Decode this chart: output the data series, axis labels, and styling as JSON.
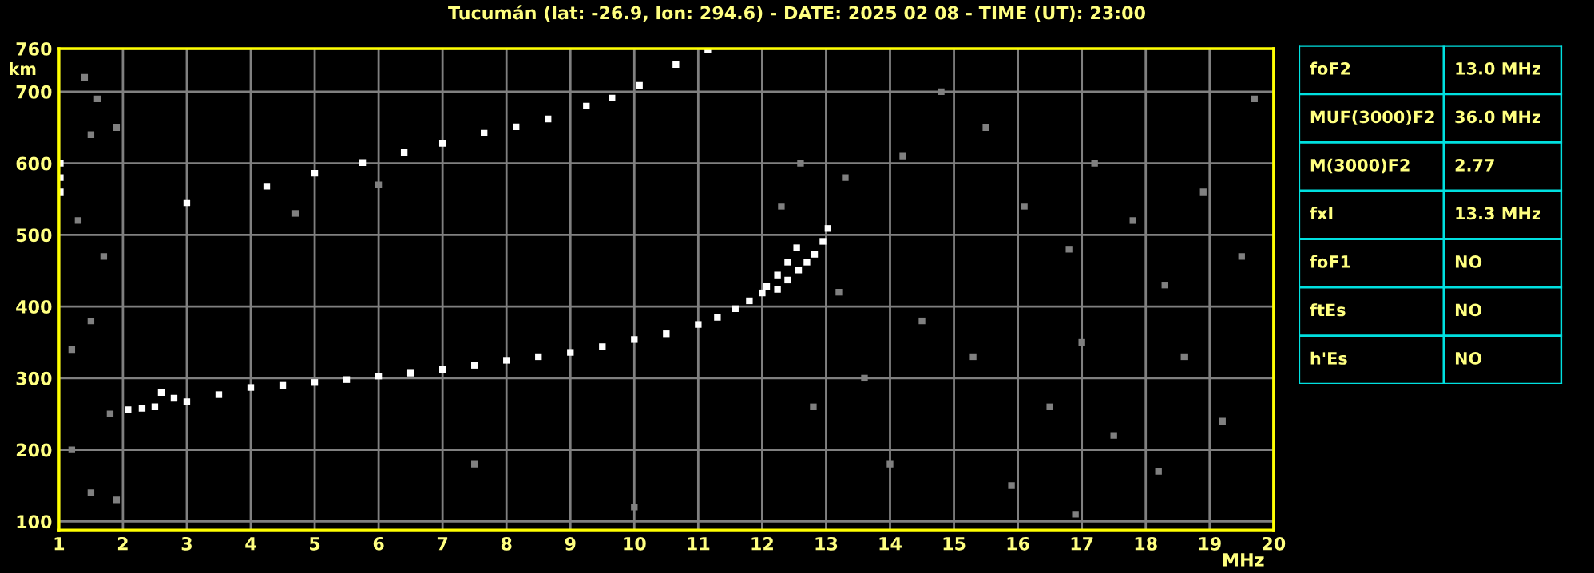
{
  "chart_data": {
    "type": "scatter",
    "title": "Tucumán (lat: -26.9, lon: 294.6) - DATE: 2025 02 08 - TIME (UT): 23:00",
    "xlabel": "MHz",
    "ylabel": "km",
    "xlim": [
      1,
      20
    ],
    "xticks": [
      1,
      2,
      3,
      4,
      5,
      6,
      7,
      8,
      9,
      10,
      11,
      12,
      13,
      14,
      15,
      16,
      17,
      18,
      19,
      20
    ],
    "ylim": [
      88,
      760
    ],
    "yticks": [
      100,
      200,
      300,
      400,
      500,
      600,
      700,
      760
    ],
    "grid": true,
    "marker": "square",
    "series": [
      {
        "color": "#ffffff",
        "x": [
          2.08,
          2.3,
          2.5,
          2.6,
          2.8,
          3.0,
          3.5,
          4.0,
          4.5,
          5.0,
          5.5,
          6.0,
          6.5,
          7.0,
          7.5,
          8.0,
          8.5,
          9.0,
          9.5,
          10.0,
          10.5,
          11.0,
          11.3,
          11.58,
          11.8,
          12.0,
          12.24,
          12.4,
          12.57,
          12.7,
          12.82,
          12.95,
          13.03
        ],
        "values": [
          256,
          258,
          260,
          280,
          272,
          267,
          277,
          287,
          290,
          294,
          298,
          303,
          307,
          312,
          318,
          325,
          330,
          336,
          344,
          354,
          362,
          375,
          385,
          397,
          408,
          419,
          424,
          437,
          451,
          462,
          473,
          491,
          509
        ]
      },
      {
        "color": "#ffffff",
        "x": [
          12.07,
          12.24,
          12.4,
          12.54
        ],
        "values": [
          428,
          444,
          462,
          482
        ]
      },
      {
        "color": "#ffffff",
        "x": [
          1.02,
          1.02,
          1.02,
          3.0,
          4.25,
          5.0,
          5.75,
          6.4,
          7.0,
          7.65,
          8.15,
          8.65,
          9.25,
          9.65,
          10.08,
          10.65,
          11.15
        ],
        "values": [
          560,
          580,
          600,
          545,
          568,
          586,
          601,
          615,
          628,
          642,
          651,
          662,
          680,
          691,
          709,
          738,
          758
        ]
      },
      {
        "color": "#808080",
        "x": [
          1.4,
          1.6,
          1.5,
          1.9,
          1.3,
          1.7,
          1.5,
          1.2,
          1.8,
          1.2,
          1.5,
          1.9,
          12.3,
          12.6,
          13.3,
          14.2,
          14.8,
          15.5,
          16.1,
          16.8,
          17.2,
          17.8,
          18.3,
          18.9,
          19.5,
          14.5,
          15.3,
          16.5,
          17.5,
          18.2,
          19.2,
          13.6,
          14.0,
          15.9,
          16.9,
          19.7,
          12.8,
          13.2,
          17.0,
          18.6,
          7.5,
          10.0,
          4.7,
          6.0
        ],
        "values": [
          720,
          690,
          640,
          650,
          520,
          470,
          380,
          340,
          250,
          200,
          140,
          130,
          540,
          600,
          580,
          610,
          700,
          650,
          540,
          480,
          600,
          520,
          430,
          560,
          470,
          380,
          330,
          260,
          220,
          170,
          240,
          300,
          180,
          150,
          110,
          690,
          260,
          420,
          350,
          330,
          180,
          120,
          530,
          570
        ]
      }
    ],
    "annotations": [
      "foF2",
      "13.0 MHz",
      "MUF(3000)F2",
      "36.0 MHz",
      "M(3000)F2",
      "2.77",
      "fxI",
      "13.3 MHz",
      "foF1",
      "NO",
      "ftEs",
      "NO",
      "h'Es",
      "NO"
    ]
  }
}
